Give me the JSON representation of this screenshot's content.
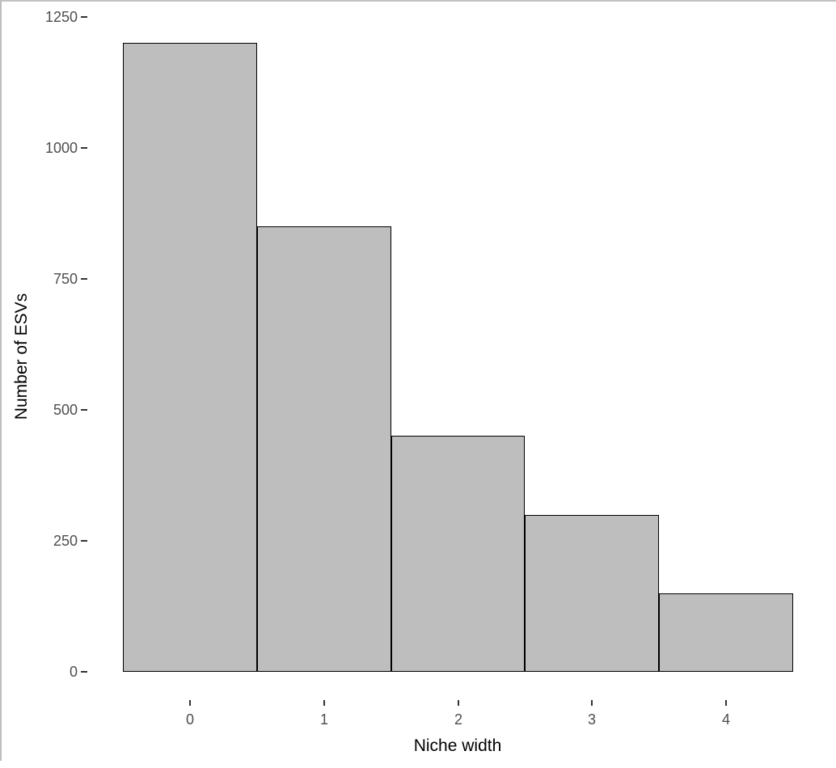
{
  "window": {
    "background": "#ffffff",
    "frame_border_color": "#c2c2c2"
  },
  "chart_data": {
    "type": "bar",
    "subtype": "histogram",
    "title": "",
    "xlabel": "Niche width",
    "ylabel": "Number of ESVs",
    "categories": [
      0,
      1,
      2,
      3,
      4
    ],
    "values": [
      1200,
      850,
      450,
      300,
      150
    ],
    "x_tick_labels": [
      "0",
      "1",
      "2",
      "3",
      "4"
    ],
    "y_tick_labels": [
      "0",
      "250",
      "500",
      "750",
      "1000",
      "1250"
    ],
    "y_tick_values": [
      0,
      250,
      500,
      750,
      1000,
      1250
    ],
    "ylim": [
      0,
      1250
    ],
    "xlim": [
      -0.5,
      4.5
    ],
    "grid": "off",
    "legend": "none",
    "bar_fill": "#bebebe",
    "bar_stroke": "#000000",
    "tick_label_color": "#4d4d4d",
    "axis_title_color": "#000000",
    "tick_mark_color": "#333333"
  }
}
